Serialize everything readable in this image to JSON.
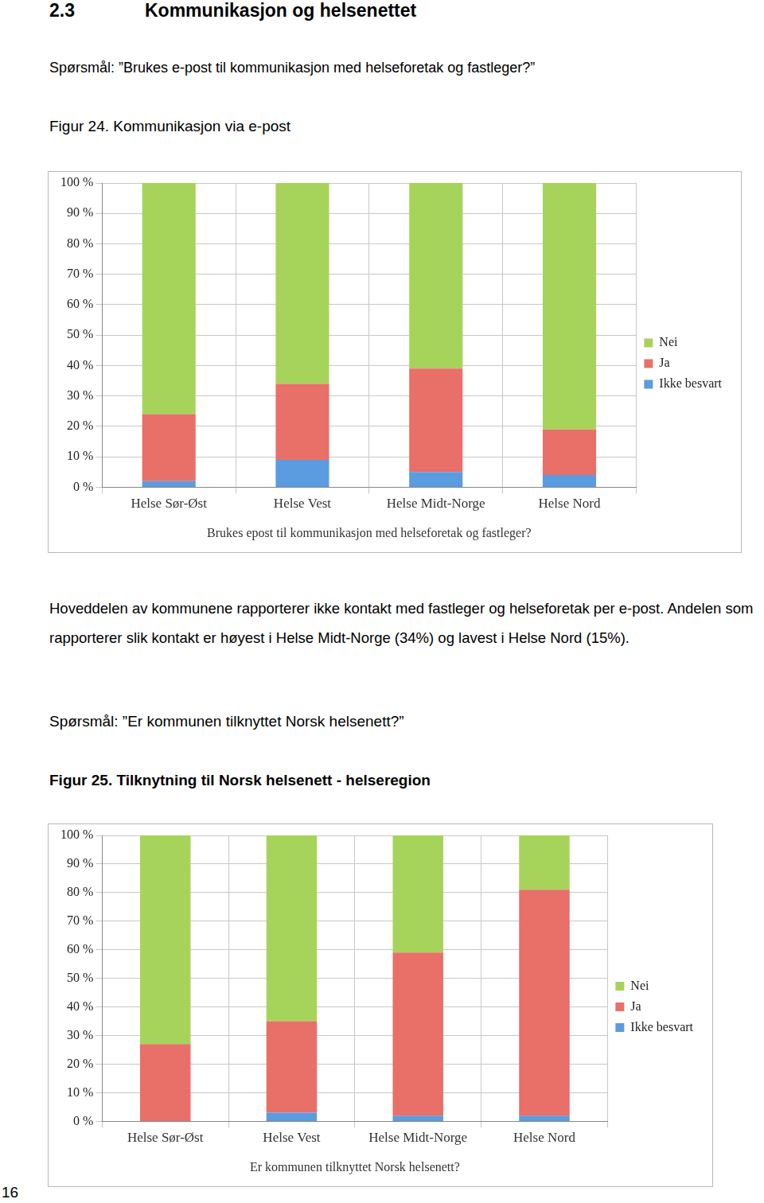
{
  "page": {
    "section_number": "2.3",
    "section_title": "Kommunikasjon og helsenettet",
    "question_1": "Spørsmål: ”Brukes e-post til kommunikasjon med helseforetak og fastleger?”",
    "figure_1_caption": "Figur 24. Kommunikasjon via e-post",
    "paragraph": "Hoveddelen av kommunene rapporterer ikke kontakt med fastleger og helseforetak per e-post. Andelen som rapporterer slik kontakt er høyest i Helse Midt-Norge (34%) og lavest i Helse Nord (15%).",
    "question_2": "Spørsmål: ”Er kommunen tilknyttet Norsk helsenett?”",
    "figure_2_caption": "Figur 25. Tilknytning til Norsk helsenett - helseregion",
    "page_number": 16
  },
  "chart_data": [
    {
      "type": "bar",
      "stacked": true,
      "grid": true,
      "legend": "right",
      "xlabel": "Brukes epost til kommunikasjon med helseforetak og fastleger?",
      "categories": [
        "Helse Sør-Øst",
        "Helse Vest",
        "Helse Midt-Norge",
        "Helse Nord"
      ],
      "series": [
        {
          "name": "Ikke besvart",
          "color": "#5b9be0",
          "values": [
            2,
            9,
            5,
            4
          ]
        },
        {
          "name": "Ja",
          "color": "#e96f69",
          "values": [
            22,
            25,
            34,
            15
          ]
        },
        {
          "name": "Nei",
          "color": "#a6d45a",
          "values": [
            76,
            66,
            61,
            81
          ]
        }
      ],
      "ylim": [
        0,
        100
      ],
      "yticks": [
        {
          "value": 0,
          "label": "0 %"
        },
        {
          "value": 10,
          "label": "10 %"
        },
        {
          "value": 20,
          "label": "20 %"
        },
        {
          "value": 30,
          "label": "30 %"
        },
        {
          "value": 40,
          "label": "40 %"
        },
        {
          "value": 50,
          "label": "50 %"
        },
        {
          "value": 60,
          "label": "60 %"
        },
        {
          "value": 70,
          "label": "70 %"
        },
        {
          "value": 80,
          "label": "80 %"
        },
        {
          "value": 90,
          "label": "90 %"
        },
        {
          "value": 100,
          "label": "100 %"
        }
      ]
    },
    {
      "type": "bar",
      "stacked": true,
      "grid": true,
      "legend": "right",
      "xlabel": "Er kommunen tilknyttet Norsk helsenett?",
      "categories": [
        "Helse Sør-Øst",
        "Helse Vest",
        "Helse Midt-Norge",
        "Helse Nord"
      ],
      "series": [
        {
          "name": "Ikke besvart",
          "color": "#5b9be0",
          "values": [
            0,
            3,
            2,
            2
          ]
        },
        {
          "name": "Ja",
          "color": "#e96f69",
          "values": [
            27,
            32,
            57,
            79
          ]
        },
        {
          "name": "Nei",
          "color": "#a6d45a",
          "values": [
            73,
            65,
            41,
            19
          ]
        }
      ],
      "ylim": [
        0,
        100
      ],
      "yticks": [
        {
          "value": 0,
          "label": "0 %"
        },
        {
          "value": 10,
          "label": "10 %"
        },
        {
          "value": 20,
          "label": "20 %"
        },
        {
          "value": 30,
          "label": "30 %"
        },
        {
          "value": 40,
          "label": "40 %"
        },
        {
          "value": 50,
          "label": "50 %"
        },
        {
          "value": 60,
          "label": "60 %"
        },
        {
          "value": 70,
          "label": "70 %"
        },
        {
          "value": 80,
          "label": "80 %"
        },
        {
          "value": 90,
          "label": "90 %"
        },
        {
          "value": 100,
          "label": "100 %"
        }
      ]
    }
  ]
}
